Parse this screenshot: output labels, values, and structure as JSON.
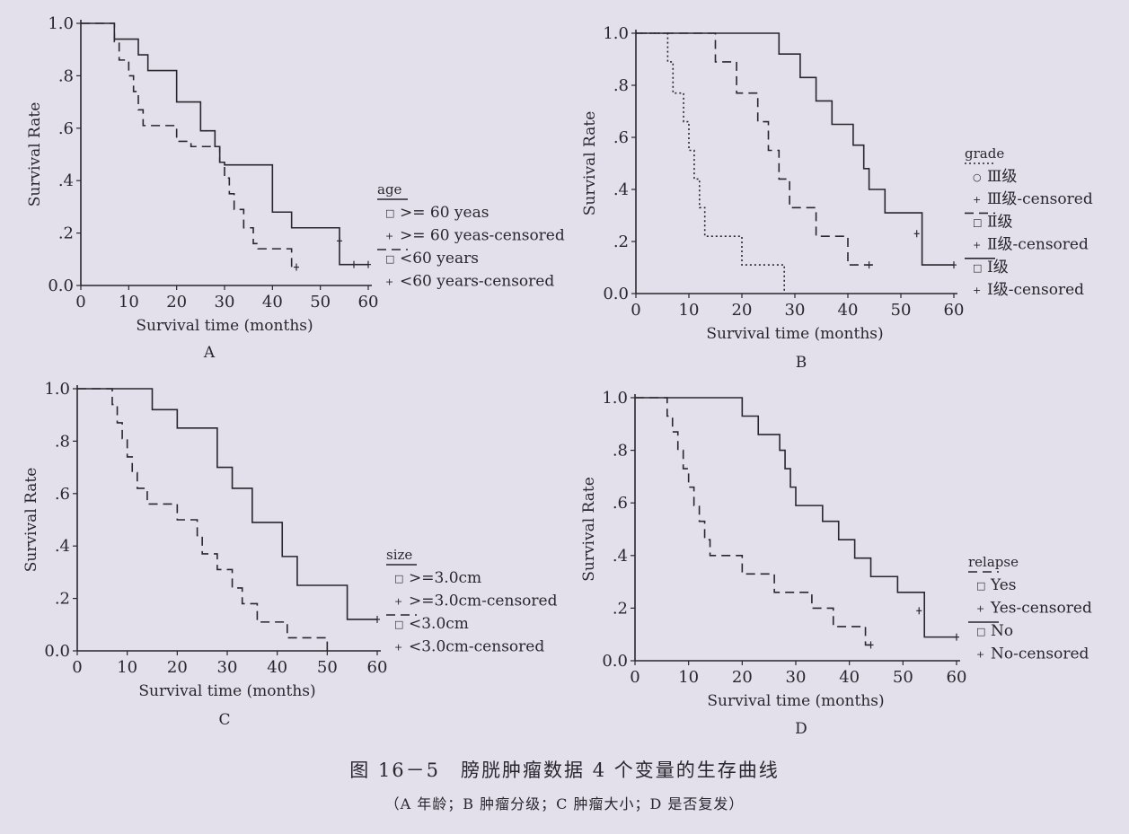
{
  "caption": {
    "title": "图 16－5　膀胱肿瘤数据 4 个变量的生存曲线",
    "subtitle": "（A 年龄；B 肿瘤分级；C 肿瘤大小；D 是否复发）"
  },
  "chart_data": [
    {
      "type": "line",
      "panel": "A",
      "xlabel": "Survival time (months)",
      "ylabel": "Survival Rate",
      "xlim": [
        0,
        60
      ],
      "ylim": [
        0,
        1
      ],
      "xticks": [
        "0",
        "10",
        "20",
        "30",
        "40",
        "50",
        "60"
      ],
      "yticks": [
        "0.0",
        ".2",
        ".4",
        ".6",
        ".8",
        "1.0"
      ],
      "legend_title": "age",
      "legend_items": [
        {
          "mark": "□",
          "label": ">= 60 yeas"
        },
        {
          "mark": "+",
          "label": ">= 60 yeas-censored"
        },
        {
          "mark": "□",
          "label": "<60 years"
        },
        {
          "mark": "+",
          "label": "<60 years-censored"
        }
      ],
      "series": [
        {
          "name": ">= 60 yeas",
          "style": "solid",
          "x": [
            0,
            7,
            12,
            14,
            20,
            25,
            28,
            29,
            30,
            40,
            44,
            54,
            60
          ],
          "y": [
            1.0,
            0.94,
            0.88,
            0.82,
            0.7,
            0.59,
            0.53,
            0.47,
            0.46,
            0.28,
            0.22,
            0.08,
            0.08
          ],
          "censored": [
            [
              54,
              0.17
            ],
            [
              57,
              0.08
            ],
            [
              60,
              0.08
            ]
          ]
        },
        {
          "name": "<60 years",
          "style": "dashed",
          "x": [
            0,
            6,
            7,
            8,
            10,
            11,
            12,
            13,
            20,
            23,
            29,
            30,
            31,
            32,
            34,
            36,
            37,
            44,
            45
          ],
          "y": [
            1.0,
            1.0,
            0.93,
            0.86,
            0.8,
            0.74,
            0.67,
            0.61,
            0.55,
            0.53,
            0.47,
            0.41,
            0.35,
            0.29,
            0.22,
            0.16,
            0.14,
            0.07,
            0.07
          ],
          "censored": [
            [
              45,
              0.07
            ]
          ]
        }
      ]
    },
    {
      "type": "line",
      "panel": "B",
      "xlabel": "Survival time (months)",
      "ylabel": "Survival Rate",
      "xlim": [
        0,
        60
      ],
      "ylim": [
        0,
        1
      ],
      "xticks": [
        "0",
        "10",
        "20",
        "30",
        "40",
        "50",
        "60"
      ],
      "yticks": [
        "0.0",
        ".2",
        ".4",
        ".6",
        ".8",
        "1.0"
      ],
      "legend_title": "grade",
      "legend_items": [
        {
          "mark": "○",
          "label": "Ⅲ级"
        },
        {
          "mark": "+",
          "label": "Ⅲ级-censored"
        },
        {
          "mark": "□",
          "label": "Ⅱ级"
        },
        {
          "mark": "+",
          "label": "Ⅱ级-censored"
        },
        {
          "mark": "□",
          "label": "Ⅰ级"
        },
        {
          "mark": "+",
          "label": "Ⅰ级-censored"
        }
      ],
      "series": [
        {
          "name": "Ⅲ级",
          "style": "dotted",
          "x": [
            0,
            6,
            7,
            9,
            10,
            11,
            12,
            13,
            20,
            28
          ],
          "y": [
            1.0,
            0.89,
            0.77,
            0.66,
            0.55,
            0.44,
            0.33,
            0.22,
            0.11,
            0.0
          ],
          "censored": []
        },
        {
          "name": "Ⅱ级",
          "style": "dashed",
          "x": [
            0,
            7,
            15,
            19,
            23,
            25,
            27,
            29,
            34,
            40,
            45
          ],
          "y": [
            1.0,
            1.0,
            0.89,
            0.77,
            0.66,
            0.55,
            0.44,
            0.33,
            0.22,
            0.11,
            0.11
          ],
          "censored": [
            [
              44,
              0.11
            ]
          ]
        },
        {
          "name": "Ⅰ级",
          "style": "solid",
          "x": [
            0,
            7,
            27,
            31,
            34,
            37,
            41,
            43,
            44,
            47,
            54,
            60
          ],
          "y": [
            1.0,
            1.0,
            0.92,
            0.83,
            0.74,
            0.65,
            0.57,
            0.48,
            0.4,
            0.31,
            0.11,
            0.11
          ],
          "censored": [
            [
              53,
              0.23
            ],
            [
              60,
              0.11
            ]
          ]
        }
      ]
    },
    {
      "type": "line",
      "panel": "C",
      "xlabel": "Survival time (months)",
      "ylabel": "Survival Rate",
      "xlim": [
        0,
        60
      ],
      "ylim": [
        0,
        1
      ],
      "xticks": [
        "0",
        "10",
        "20",
        "30",
        "40",
        "50",
        "60"
      ],
      "yticks": [
        "0.0",
        ".2",
        ".4",
        ".6",
        ".8",
        "1.0"
      ],
      "legend_title": "size",
      "legend_items": [
        {
          "mark": "□",
          "label": ">=3.0cm"
        },
        {
          "mark": "+",
          "label": ">=3.0cm-censored"
        },
        {
          "mark": "□",
          "label": "<3.0cm"
        },
        {
          "mark": "+",
          "label": "<3.0cm-censored"
        }
      ],
      "series": [
        {
          "name": ">=3.0cm",
          "style": "solid",
          "x": [
            0,
            7,
            15,
            20,
            28,
            31,
            35,
            41,
            44,
            54,
            60
          ],
          "y": [
            1.0,
            1.0,
            0.92,
            0.85,
            0.7,
            0.62,
            0.49,
            0.36,
            0.25,
            0.12,
            0.12
          ],
          "censored": [
            [
              60,
              0.12
            ]
          ]
        },
        {
          "name": "<3.0cm",
          "style": "dashed",
          "x": [
            0,
            7,
            8,
            9,
            10,
            11,
            12,
            14,
            20,
            24,
            25,
            28,
            31,
            33,
            36,
            42,
            50
          ],
          "y": [
            1.0,
            0.94,
            0.87,
            0.81,
            0.74,
            0.68,
            0.62,
            0.56,
            0.5,
            0.44,
            0.37,
            0.31,
            0.24,
            0.18,
            0.11,
            0.05,
            0.0
          ],
          "censored": []
        }
      ]
    },
    {
      "type": "line",
      "panel": "D",
      "xlabel": "Survival time (months)",
      "ylabel": "Survival Rate",
      "xlim": [
        0,
        60
      ],
      "ylim": [
        0,
        1
      ],
      "xticks": [
        "0",
        "10",
        "20",
        "30",
        "40",
        "50",
        "60"
      ],
      "yticks": [
        "0.0",
        ".2",
        ".4",
        ".6",
        ".8",
        "1.0"
      ],
      "legend_title": "relapse",
      "legend_items": [
        {
          "mark": "□",
          "label": "Yes"
        },
        {
          "mark": "+",
          "label": "Yes-censored"
        },
        {
          "mark": "□",
          "label": "No"
        },
        {
          "mark": "+",
          "label": "No-censored"
        }
      ],
      "series": [
        {
          "name": "Yes",
          "style": "dashed",
          "x": [
            0,
            6,
            7,
            8,
            9,
            10,
            11,
            12,
            13,
            14,
            20,
            26,
            33,
            37,
            43,
            44
          ],
          "y": [
            1.0,
            0.93,
            0.87,
            0.8,
            0.73,
            0.66,
            0.59,
            0.53,
            0.46,
            0.4,
            0.33,
            0.26,
            0.2,
            0.13,
            0.06,
            0.06
          ],
          "censored": [
            [
              44,
              0.06
            ]
          ]
        },
        {
          "name": "No",
          "style": "solid",
          "x": [
            0,
            6,
            20,
            23,
            27,
            28,
            29,
            30,
            35,
            38,
            41,
            44,
            49,
            54,
            60
          ],
          "y": [
            1.0,
            1.0,
            0.93,
            0.86,
            0.8,
            0.73,
            0.66,
            0.59,
            0.53,
            0.46,
            0.39,
            0.32,
            0.26,
            0.09,
            0.09
          ],
          "censored": [
            [
              53,
              0.19
            ],
            [
              60,
              0.09
            ]
          ]
        }
      ]
    }
  ]
}
